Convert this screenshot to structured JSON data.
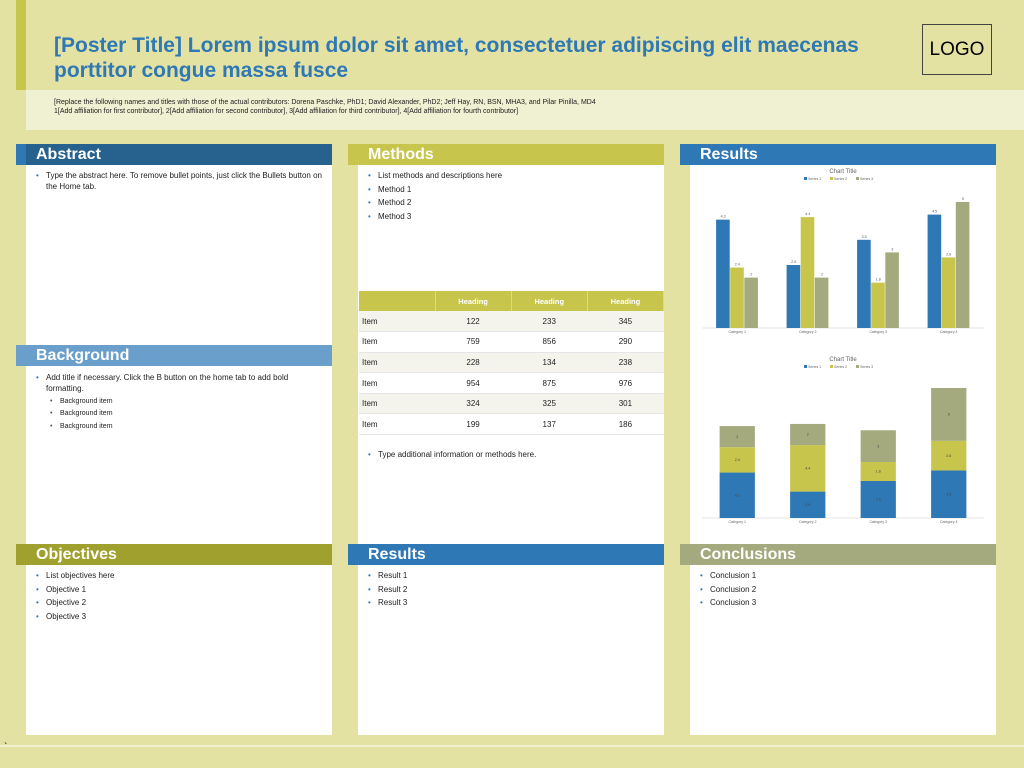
{
  "header": {
    "title": "[Poster Title] Lorem ipsum dolor sit amet, consectetuer adipiscing elit maecenas porttitor congue massa fusce",
    "contributors_line1": "[Replace the following names and titles with those of the actual contributors: Dorena Paschke, PhD1; David Alexander, PhD2;  Jeff Hay, RN, BSN, MHA3, and Pilar Pinilla, MD4",
    "contributors_line2": "1[Add affiliation for first contributor], 2[Add affiliation for second contributor], 3[Add affiliation for third contributor], 4[Add affiliation for fourth contributor]",
    "logo": "LOGO"
  },
  "colors": {
    "background": "#e3e2a3",
    "blue": "#2e78b5",
    "yellow_green": "#c7c54c",
    "light_blue": "#6a9fcb",
    "olive": "#a0a02e",
    "sage": "#a4aa7e",
    "dark_blue_head": "#27628f"
  },
  "abstract": {
    "heading": "Abstract",
    "items": [
      "Type the abstract here. To remove bullet points, just click the Bullets button on the Home tab."
    ]
  },
  "background": {
    "heading": "Background",
    "item": "Add title if necessary. Click the B button on the home tab to add bold formatting.",
    "sub_items": [
      "Background item",
      "Background item",
      "Background item"
    ]
  },
  "objectives": {
    "heading": "Objectives",
    "items": [
      "List objectives here",
      "Objective 1",
      "Objective 2",
      "Objective 3"
    ]
  },
  "methods": {
    "heading": "Methods",
    "items": [
      "List methods and descriptions here",
      "Method 1",
      "Method 2",
      "Method 3"
    ],
    "table": {
      "headers": [
        "",
        "Heading",
        "Heading",
        "Heading"
      ],
      "rows": [
        [
          "Item",
          "122",
          "233",
          "345"
        ],
        [
          "Item",
          "759",
          "856",
          "290"
        ],
        [
          "Item",
          "228",
          "134",
          "238"
        ],
        [
          "Item",
          "954",
          "875",
          "976"
        ],
        [
          "Item",
          "324",
          "325",
          "301"
        ],
        [
          "Item",
          "199",
          "137",
          "186"
        ]
      ]
    },
    "additional": "Type additional information or methods here."
  },
  "results_mid": {
    "heading": "Results",
    "items": [
      "Result 1",
      "Result 2",
      "Result 3"
    ]
  },
  "results_right": {
    "heading": "Results"
  },
  "conclusions": {
    "heading": "Conclusions",
    "items": [
      "Conclusion 1",
      "Conclusion 2",
      "Conclusion 3"
    ]
  },
  "chart_data": [
    {
      "type": "bar",
      "title": "Chart Title",
      "categories": [
        "Category 1",
        "Category 2",
        "Category 3",
        "Category 4"
      ],
      "series": [
        {
          "name": "Series 1",
          "values": [
            4.3,
            2.5,
            3.5,
            4.5
          ],
          "color": "#2e78b5"
        },
        {
          "name": "Series 2",
          "values": [
            2.4,
            4.4,
            1.8,
            2.8
          ],
          "color": "#c7c54c"
        },
        {
          "name": "Series 3",
          "values": [
            2,
            2,
            3,
            5
          ],
          "color": "#a4aa7e"
        }
      ],
      "ylim": [
        0,
        5
      ],
      "legend": "top",
      "grid": false
    },
    {
      "type": "bar",
      "stacked": true,
      "title": "Chart Title",
      "categories": [
        "Category 1",
        "Category 2",
        "Category 3",
        "Category 4"
      ],
      "series": [
        {
          "name": "Series 1",
          "values": [
            4.3,
            2.5,
            3.5,
            4.5
          ],
          "color": "#2e78b5"
        },
        {
          "name": "Series 2",
          "values": [
            2.4,
            4.4,
            1.8,
            2.8
          ],
          "color": "#c7c54c"
        },
        {
          "name": "Series 3",
          "values": [
            2,
            2,
            3,
            5
          ],
          "color": "#a4aa7e"
        }
      ],
      "ylim": [
        0,
        12.3
      ],
      "legend": "top",
      "grid": false
    }
  ],
  "footer": {
    "mark": "`"
  }
}
